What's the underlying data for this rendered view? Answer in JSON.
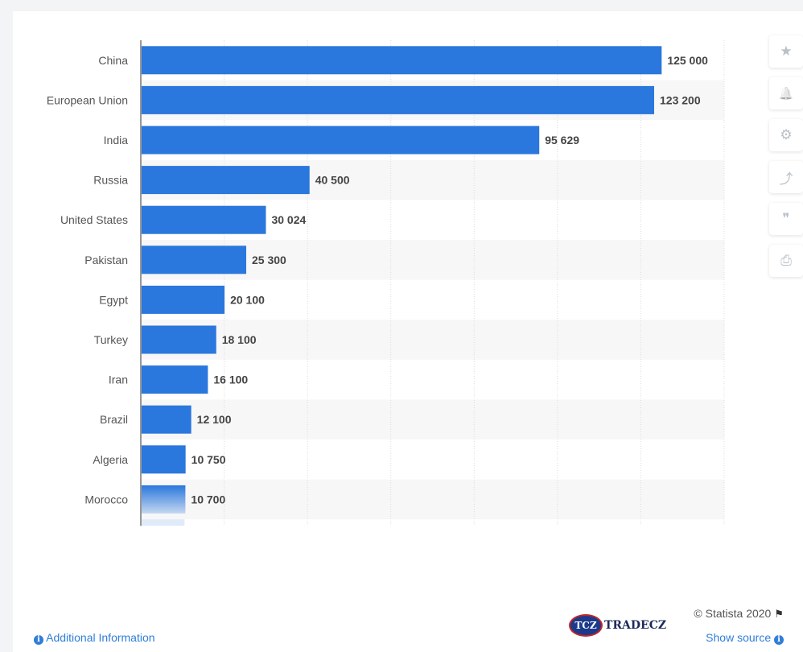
{
  "chart_data": {
    "type": "bar",
    "orientation": "horizontal",
    "categories": [
      "China",
      "European Union",
      "India",
      "Russia",
      "United States",
      "Pakistan",
      "Egypt",
      "Turkey",
      "Iran",
      "Brazil",
      "Algeria",
      "Morocco"
    ],
    "values": [
      125000,
      123200,
      95629,
      40500,
      30024,
      25300,
      20100,
      18100,
      16100,
      12100,
      10750,
      10700
    ],
    "value_labels": [
      "125 000",
      "123 200",
      "95 629",
      "40 500",
      "30 024",
      "25 300",
      "20 100",
      "18 100",
      "16 100",
      "12 100",
      "10 750",
      "10 700"
    ],
    "xlim": [
      0,
      140000
    ],
    "grid": true,
    "bar_color": "#2a77dd"
  },
  "toolbar": {
    "icons": [
      "star-icon",
      "bell-icon",
      "gear-icon",
      "share-icon",
      "quote-icon",
      "print-icon"
    ],
    "glyphs": [
      "★",
      "🔔",
      "⚙",
      "⤴",
      "❞",
      "⎙"
    ]
  },
  "footer": {
    "copyright": "© Statista 2020",
    "flag_glyph": "⚑",
    "additional_info": "Additional Information",
    "show_source": "Show source",
    "info_glyph": "i",
    "logo_mark": "TCZ",
    "logo_text": "TRADECZ"
  }
}
